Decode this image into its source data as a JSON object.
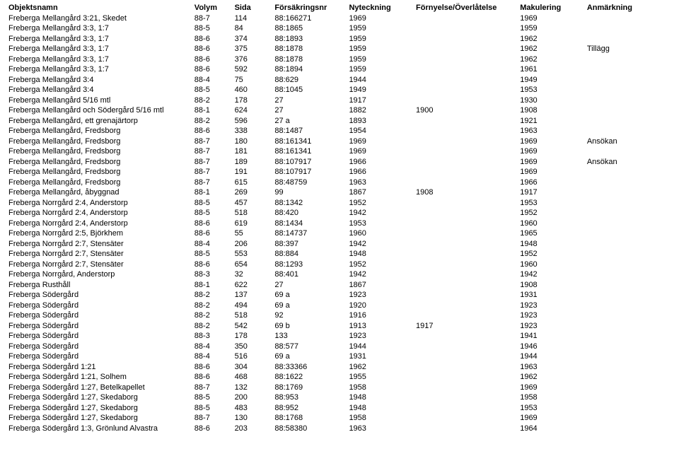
{
  "headers": {
    "objekt": "Objektsnamn",
    "volym": "Volym",
    "sida": "Sida",
    "forsakr": "Försäkringsnr",
    "nyteck": "Nyteckning",
    "fornya": "Förnyelse/Överlåtelse",
    "makul": "Makulering",
    "anmark": "Anmärkning"
  },
  "rows": [
    {
      "objekt": "Freberga Mellangård 3:21, Skedet",
      "volym": "88-7",
      "sida": "114",
      "forsakr": "88:166271",
      "nyteck": "1969",
      "fornya": "",
      "makul": "1969",
      "anmark": ""
    },
    {
      "objekt": "Freberga Mellangård 3:3, 1:7",
      "volym": "88-5",
      "sida": "84",
      "forsakr": "88:1865",
      "nyteck": "1959",
      "fornya": "",
      "makul": "1959",
      "anmark": ""
    },
    {
      "objekt": "Freberga Mellangård 3:3, 1:7",
      "volym": "88-6",
      "sida": "374",
      "forsakr": "88:1893",
      "nyteck": "1959",
      "fornya": "",
      "makul": "1962",
      "anmark": ""
    },
    {
      "objekt": "Freberga Mellangård 3:3, 1:7",
      "volym": "88-6",
      "sida": "375",
      "forsakr": "88:1878",
      "nyteck": "1959",
      "fornya": "",
      "makul": "1962",
      "anmark": "Tillägg"
    },
    {
      "objekt": "Freberga Mellangård 3:3, 1:7",
      "volym": "88-6",
      "sida": "376",
      "forsakr": "88:1878",
      "nyteck": "1959",
      "fornya": "",
      "makul": "1962",
      "anmark": ""
    },
    {
      "objekt": "Freberga Mellangård 3:3, 1:7",
      "volym": "88-6",
      "sida": "592",
      "forsakr": "88:1894",
      "nyteck": "1959",
      "fornya": "",
      "makul": "1961",
      "anmark": ""
    },
    {
      "objekt": "Freberga Mellangård 3:4",
      "volym": "88-4",
      "sida": "75",
      "forsakr": "88:629",
      "nyteck": "1944",
      "fornya": "",
      "makul": "1949",
      "anmark": ""
    },
    {
      "objekt": "Freberga Mellangård 3:4",
      "volym": "88-5",
      "sida": "460",
      "forsakr": "88:1045",
      "nyteck": "1949",
      "fornya": "",
      "makul": "1953",
      "anmark": ""
    },
    {
      "objekt": "Freberga Mellangård 5/16 mtl",
      "volym": "88-2",
      "sida": "178",
      "forsakr": "27",
      "nyteck": "1917",
      "fornya": "",
      "makul": "1930",
      "anmark": ""
    },
    {
      "objekt": "Freberga Mellangård och Södergård 5/16 mtl",
      "volym": "88-1",
      "sida": "624",
      "forsakr": "27",
      "nyteck": "1882",
      "fornya": "1900",
      "makul": "1908",
      "anmark": ""
    },
    {
      "objekt": "Freberga Mellangård, ett grenajärtorp",
      "volym": "88-2",
      "sida": "596",
      "forsakr": "27 a",
      "nyteck": "1893",
      "fornya": "",
      "makul": "1921",
      "anmark": ""
    },
    {
      "objekt": "Freberga Mellangård, Fredsborg",
      "volym": "88-6",
      "sida": "338",
      "forsakr": "88:1487",
      "nyteck": "1954",
      "fornya": "",
      "makul": "1963",
      "anmark": ""
    },
    {
      "objekt": "Freberga Mellangård, Fredsborg",
      "volym": "88-7",
      "sida": "180",
      "forsakr": "88:161341",
      "nyteck": "1969",
      "fornya": "",
      "makul": "1969",
      "anmark": "Ansökan"
    },
    {
      "objekt": "Freberga Mellangård, Fredsborg",
      "volym": "88-7",
      "sida": "181",
      "forsakr": "88:161341",
      "nyteck": "1969",
      "fornya": "",
      "makul": "1969",
      "anmark": ""
    },
    {
      "objekt": "Freberga Mellangård, Fredsborg",
      "volym": "88-7",
      "sida": "189",
      "forsakr": "88:107917",
      "nyteck": "1966",
      "fornya": "",
      "makul": "1969",
      "anmark": "Ansökan"
    },
    {
      "objekt": "Freberga Mellangård, Fredsborg",
      "volym": "88-7",
      "sida": "191",
      "forsakr": "88:107917",
      "nyteck": "1966",
      "fornya": "",
      "makul": "1969",
      "anmark": ""
    },
    {
      "objekt": "Freberga Mellangård, Fredsborg",
      "volym": "88-7",
      "sida": "615",
      "forsakr": "88:48759",
      "nyteck": "1963",
      "fornya": "",
      "makul": "1966",
      "anmark": ""
    },
    {
      "objekt": "Freberga Mellangård, åbyggnad",
      "volym": "88-1",
      "sida": "269",
      "forsakr": "99",
      "nyteck": "1867",
      "fornya": "1908",
      "makul": "1917",
      "anmark": ""
    },
    {
      "objekt": "Freberga Norrgård 2:4, Anderstorp",
      "volym": "88-5",
      "sida": "457",
      "forsakr": "88:1342",
      "nyteck": "1952",
      "fornya": "",
      "makul": "1953",
      "anmark": ""
    },
    {
      "objekt": "Freberga Norrgård 2:4, Anderstorp",
      "volym": "88-5",
      "sida": "518",
      "forsakr": "88:420",
      "nyteck": "1942",
      "fornya": "",
      "makul": "1952",
      "anmark": ""
    },
    {
      "objekt": "Freberga Norrgård 2:4, Anderstorp",
      "volym": "88-6",
      "sida": "619",
      "forsakr": "88:1434",
      "nyteck": "1953",
      "fornya": "",
      "makul": "1960",
      "anmark": ""
    },
    {
      "objekt": "Freberga Norrgård 2:5, Björkhem",
      "volym": "88-6",
      "sida": "55",
      "forsakr": "88:14737",
      "nyteck": "1960",
      "fornya": "",
      "makul": "1965",
      "anmark": ""
    },
    {
      "objekt": "Freberga Norrgård 2:7, Stensäter",
      "volym": "88-4",
      "sida": "206",
      "forsakr": "88:397",
      "nyteck": "1942",
      "fornya": "",
      "makul": "1948",
      "anmark": ""
    },
    {
      "objekt": "Freberga Norrgård 2:7, Stensäter",
      "volym": "88-5",
      "sida": "553",
      "forsakr": "88:884",
      "nyteck": "1948",
      "fornya": "",
      "makul": "1952",
      "anmark": ""
    },
    {
      "objekt": "Freberga Norrgård 2:7, Stensäter",
      "volym": "88-6",
      "sida": "654",
      "forsakr": "88:1293",
      "nyteck": "1952",
      "fornya": "",
      "makul": "1960",
      "anmark": ""
    },
    {
      "objekt": "Freberga Norrgård, Anderstorp",
      "volym": "88-3",
      "sida": "32",
      "forsakr": "88:401",
      "nyteck": "1942",
      "fornya": "",
      "makul": "1942",
      "anmark": ""
    },
    {
      "objekt": "Freberga Rusthåll",
      "volym": "88-1",
      "sida": "622",
      "forsakr": "27",
      "nyteck": "1867",
      "fornya": "",
      "makul": "1908",
      "anmark": ""
    },
    {
      "objekt": "Freberga Södergård",
      "volym": "88-2",
      "sida": "137",
      "forsakr": "69 a",
      "nyteck": "1923",
      "fornya": "",
      "makul": "1931",
      "anmark": ""
    },
    {
      "objekt": "Freberga Södergård",
      "volym": "88-2",
      "sida": "494",
      "forsakr": "69 a",
      "nyteck": "1920",
      "fornya": "",
      "makul": "1923",
      "anmark": ""
    },
    {
      "objekt": "Freberga Södergård",
      "volym": "88-2",
      "sida": "518",
      "forsakr": "92",
      "nyteck": "1916",
      "fornya": "",
      "makul": "1923",
      "anmark": ""
    },
    {
      "objekt": "Freberga Södergård",
      "volym": "88-2",
      "sida": "542",
      "forsakr": "69 b",
      "nyteck": "1913",
      "fornya": "1917",
      "makul": "1923",
      "anmark": ""
    },
    {
      "objekt": "Freberga Södergård",
      "volym": "88-3",
      "sida": "178",
      "forsakr": "133",
      "nyteck": "1923",
      "fornya": "",
      "makul": "1941",
      "anmark": ""
    },
    {
      "objekt": "Freberga Södergård",
      "volym": "88-4",
      "sida": "350",
      "forsakr": "88:577",
      "nyteck": "1944",
      "fornya": "",
      "makul": "1946",
      "anmark": ""
    },
    {
      "objekt": "Freberga Södergård",
      "volym": "88-4",
      "sida": "516",
      "forsakr": "69 a",
      "nyteck": "1931",
      "fornya": "",
      "makul": "1944",
      "anmark": ""
    },
    {
      "objekt": "Freberga Södergård 1:21",
      "volym": "88-6",
      "sida": "304",
      "forsakr": "88:33366",
      "nyteck": "1962",
      "fornya": "",
      "makul": "1963",
      "anmark": ""
    },
    {
      "objekt": "Freberga Södergård 1:21, Solhem",
      "volym": "88-6",
      "sida": "468",
      "forsakr": "88:1622",
      "nyteck": "1955",
      "fornya": "",
      "makul": "1962",
      "anmark": ""
    },
    {
      "objekt": "Freberga Södergård 1:27, Betelkapellet",
      "volym": "88-7",
      "sida": "132",
      "forsakr": "88:1769",
      "nyteck": "1958",
      "fornya": "",
      "makul": "1969",
      "anmark": ""
    },
    {
      "objekt": "Freberga Södergård 1:27, Skedaborg",
      "volym": "88-5",
      "sida": "200",
      "forsakr": "88:953",
      "nyteck": "1948",
      "fornya": "",
      "makul": "1958",
      "anmark": ""
    },
    {
      "objekt": "Freberga Södergård 1:27, Skedaborg",
      "volym": "88-5",
      "sida": "483",
      "forsakr": "88:952",
      "nyteck": "1948",
      "fornya": "",
      "makul": "1953",
      "anmark": ""
    },
    {
      "objekt": "Freberga Södergård 1:27, Skedaborg",
      "volym": "88-7",
      "sida": "130",
      "forsakr": "88:1768",
      "nyteck": "1958",
      "fornya": "",
      "makul": "1969",
      "anmark": ""
    },
    {
      "objekt": "Freberga Södergård 1:3, Grönlund Alvastra",
      "volym": "88-6",
      "sida": "203",
      "forsakr": "88:58380",
      "nyteck": "1963",
      "fornya": "",
      "makul": "1964",
      "anmark": ""
    }
  ]
}
